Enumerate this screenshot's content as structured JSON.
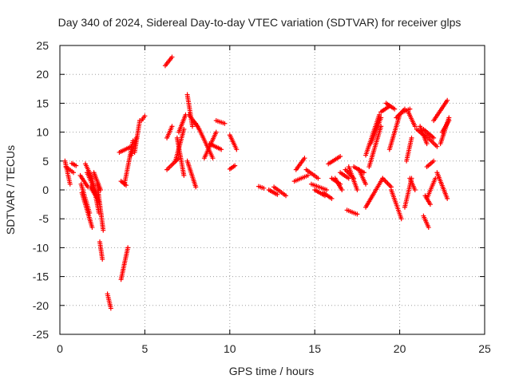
{
  "chart_data": {
    "type": "scatter",
    "title": "Day 340 of 2024, Sidereal Day-to-day VTEC variation (SDTVAR) for receiver glps",
    "xlabel": "GPS time / hours",
    "ylabel": "SDTVAR / TECUs",
    "xlim": [
      0,
      25
    ],
    "ylim": [
      -25,
      25
    ],
    "xticks": [
      0,
      5,
      10,
      15,
      20,
      25
    ],
    "yticks": [
      -25,
      -20,
      -15,
      -10,
      -5,
      0,
      5,
      10,
      15,
      20,
      25
    ],
    "grid": true,
    "marker": "+",
    "series_color": "#ff0000",
    "segments": [
      {
        "x0": 0.3,
        "x1": 0.6,
        "y0": 5.0,
        "y1": 1.0
      },
      {
        "x0": 0.35,
        "x1": 0.8,
        "y0": 4.0,
        "y1": 3.0
      },
      {
        "x0": 0.7,
        "x1": 0.95,
        "y0": 4.6,
        "y1": 4.2
      },
      {
        "x0": 1.2,
        "x1": 1.65,
        "y0": 2.5,
        "y1": 0.5
      },
      {
        "x0": 1.25,
        "x1": 1.75,
        "y0": 1.0,
        "y1": -4.0
      },
      {
        "x0": 1.3,
        "x1": 1.9,
        "y0": -0.5,
        "y1": -6.5
      },
      {
        "x0": 1.5,
        "x1": 1.9,
        "y0": 4.5,
        "y1": 2.0
      },
      {
        "x0": 1.6,
        "x1": 2.2,
        "y0": 3.0,
        "y1": -1.0
      },
      {
        "x0": 1.8,
        "x1": 2.3,
        "y0": 0.5,
        "y1": -2.0
      },
      {
        "x0": 1.9,
        "x1": 2.3,
        "y0": 2.0,
        "y1": -4.0
      },
      {
        "x0": 2.0,
        "x1": 2.4,
        "y0": 3.0,
        "y1": 0.0
      },
      {
        "x0": 2.2,
        "x1": 2.55,
        "y0": 1.0,
        "y1": -7.0
      },
      {
        "x0": 2.35,
        "x1": 2.5,
        "y0": -9.0,
        "y1": -12.0
      },
      {
        "x0": 2.8,
        "x1": 3.0,
        "y0": -18.0,
        "y1": -20.5
      },
      {
        "x0": 3.6,
        "x1": 3.9,
        "y0": 1.5,
        "y1": 0.8
      },
      {
        "x0": 3.6,
        "x1": 4.0,
        "y0": -15.5,
        "y1": -10.0
      },
      {
        "x0": 3.5,
        "x1": 4.2,
        "y0": 6.5,
        "y1": 7.5
      },
      {
        "x0": 3.8,
        "x1": 4.3,
        "y0": 1.0,
        "y1": 8.5
      },
      {
        "x0": 4.2,
        "x1": 4.5,
        "y0": 6.0,
        "y1": 9.0
      },
      {
        "x0": 4.4,
        "x1": 4.7,
        "y0": 6.5,
        "y1": 12.0
      },
      {
        "x0": 4.8,
        "x1": 5.0,
        "y0": 12.0,
        "y1": 12.8
      },
      {
        "x0": 6.2,
        "x1": 6.6,
        "y0": 21.5,
        "y1": 23.0
      },
      {
        "x0": 6.3,
        "x1": 6.6,
        "y0": 9.0,
        "y1": 11.0
      },
      {
        "x0": 6.3,
        "x1": 7.0,
        "y0": 3.5,
        "y1": 5.5
      },
      {
        "x0": 6.8,
        "x1": 7.3,
        "y0": 5.0,
        "y1": 10.5
      },
      {
        "x0": 6.9,
        "x1": 7.3,
        "y0": 9.0,
        "y1": 2.5
      },
      {
        "x0": 7.0,
        "x1": 7.4,
        "y0": 10.0,
        "y1": 13.0
      },
      {
        "x0": 7.5,
        "x1": 7.8,
        "y0": 16.5,
        "y1": 11.0
      },
      {
        "x0": 7.5,
        "x1": 8.0,
        "y0": 5.0,
        "y1": 0.5
      },
      {
        "x0": 7.6,
        "x1": 8.1,
        "y0": 13.0,
        "y1": 11.0
      },
      {
        "x0": 8.0,
        "x1": 8.2,
        "y0": 11.5,
        "y1": 10.5
      },
      {
        "x0": 8.2,
        "x1": 9.0,
        "y0": 10.5,
        "y1": 5.5
      },
      {
        "x0": 8.5,
        "x1": 9.2,
        "y0": 5.5,
        "y1": 10.0
      },
      {
        "x0": 8.8,
        "x1": 9.5,
        "y0": 8.0,
        "y1": 7.0
      },
      {
        "x0": 9.2,
        "x1": 9.7,
        "y0": 12.0,
        "y1": 11.5
      },
      {
        "x0": 10.0,
        "x1": 10.4,
        "y0": 9.5,
        "y1": 7.0
      },
      {
        "x0": 10.0,
        "x1": 10.3,
        "y0": 3.6,
        "y1": 4.2
      },
      {
        "x0": 11.7,
        "x1": 12.0,
        "y0": 0.6,
        "y1": 0.3
      },
      {
        "x0": 12.3,
        "x1": 12.8,
        "y0": 0.0,
        "y1": -0.8
      },
      {
        "x0": 12.6,
        "x1": 13.3,
        "y0": 0.5,
        "y1": -1.0
      },
      {
        "x0": 13.9,
        "x1": 14.4,
        "y0": 3.5,
        "y1": 5.5
      },
      {
        "x0": 13.8,
        "x1": 14.6,
        "y0": 1.5,
        "y1": 2.5
      },
      {
        "x0": 14.5,
        "x1": 15.2,
        "y0": 3.5,
        "y1": 2.0
      },
      {
        "x0": 14.8,
        "x1": 15.7,
        "y0": 1.0,
        "y1": 0.0
      },
      {
        "x0": 15.0,
        "x1": 15.6,
        "y0": 0.0,
        "y1": -1.0
      },
      {
        "x0": 15.5,
        "x1": 16.0,
        "y0": -0.5,
        "y1": -1.5
      },
      {
        "x0": 15.8,
        "x1": 16.5,
        "y0": 4.5,
        "y1": 5.8
      },
      {
        "x0": 16.0,
        "x1": 16.5,
        "y0": 2.0,
        "y1": 1.0
      },
      {
        "x0": 16.2,
        "x1": 16.6,
        "y0": 2.0,
        "y1": 0.0
      },
      {
        "x0": 16.5,
        "x1": 17.0,
        "y0": 3.0,
        "y1": 2.0
      },
      {
        "x0": 16.8,
        "x1": 17.3,
        "y0": 3.5,
        "y1": 2.0
      },
      {
        "x0": 16.9,
        "x1": 17.5,
        "y0": -3.5,
        "y1": -4.2
      },
      {
        "x0": 17.0,
        "x1": 17.5,
        "y0": 4.0,
        "y1": 0.0
      },
      {
        "x0": 17.3,
        "x1": 17.9,
        "y0": 4.0,
        "y1": 3.0
      },
      {
        "x0": 17.6,
        "x1": 18.0,
        "y0": 3.5,
        "y1": 1.0
      },
      {
        "x0": 18.0,
        "x1": 18.8,
        "y0": 6.0,
        "y1": 13.0
      },
      {
        "x0": 18.2,
        "x1": 18.9,
        "y0": 4.0,
        "y1": 11.0
      },
      {
        "x0": 18.3,
        "x1": 18.9,
        "y0": 8.0,
        "y1": 12.5
      },
      {
        "x0": 18.0,
        "x1": 18.4,
        "y0": -3.0,
        "y1": -1.0
      },
      {
        "x0": 18.4,
        "x1": 19.0,
        "y0": -1.0,
        "y1": 2.0
      },
      {
        "x0": 18.9,
        "x1": 19.4,
        "y0": 13.5,
        "y1": 14.5
      },
      {
        "x0": 19.0,
        "x1": 19.5,
        "y0": 2.0,
        "y1": 0.5
      },
      {
        "x0": 19.2,
        "x1": 19.7,
        "y0": 15.0,
        "y1": 14.0
      },
      {
        "x0": 19.4,
        "x1": 20.0,
        "y0": 7.0,
        "y1": 13.0
      },
      {
        "x0": 19.5,
        "x1": 20.1,
        "y0": 0.0,
        "y1": -5.0
      },
      {
        "x0": 19.8,
        "x1": 20.3,
        "y0": 12.5,
        "y1": 14.0
      },
      {
        "x0": 20.2,
        "x1": 20.6,
        "y0": 13.5,
        "y1": 14.0
      },
      {
        "x0": 20.3,
        "x1": 20.7,
        "y0": -3.0,
        "y1": 2.0
      },
      {
        "x0": 20.4,
        "x1": 20.7,
        "y0": 5.0,
        "y1": 9.0
      },
      {
        "x0": 20.5,
        "x1": 20.9,
        "y0": 13.5,
        "y1": 11.0
      },
      {
        "x0": 20.6,
        "x1": 20.9,
        "y0": 2.0,
        "y1": 0.0
      },
      {
        "x0": 21.0,
        "x1": 21.4,
        "y0": 10.5,
        "y1": 9.5
      },
      {
        "x0": 21.2,
        "x1": 21.6,
        "y0": 11.0,
        "y1": 8.0
      },
      {
        "x0": 21.4,
        "x1": 22.0,
        "y0": 10.5,
        "y1": 9.0
      },
      {
        "x0": 21.5,
        "x1": 22.2,
        "y0": 9.5,
        "y1": 7.5
      },
      {
        "x0": 21.6,
        "x1": 22.0,
        "y0": 4.0,
        "y1": 5.0
      },
      {
        "x0": 21.5,
        "x1": 21.8,
        "y0": -1.0,
        "y1": -2.5
      },
      {
        "x0": 21.4,
        "x1": 21.7,
        "y0": -4.5,
        "y1": -6.5
      },
      {
        "x0": 21.6,
        "x1": 22.1,
        "y0": -1.5,
        "y1": 2.0
      },
      {
        "x0": 22.0,
        "x1": 22.8,
        "y0": 12.0,
        "y1": 15.5
      },
      {
        "x0": 22.2,
        "x1": 22.8,
        "y0": 3.0,
        "y1": -1.5
      },
      {
        "x0": 22.4,
        "x1": 22.9,
        "y0": 8.0,
        "y1": 12.5
      },
      {
        "x0": 22.5,
        "x1": 22.9,
        "y0": 10.0,
        "y1": 12.0
      }
    ]
  }
}
